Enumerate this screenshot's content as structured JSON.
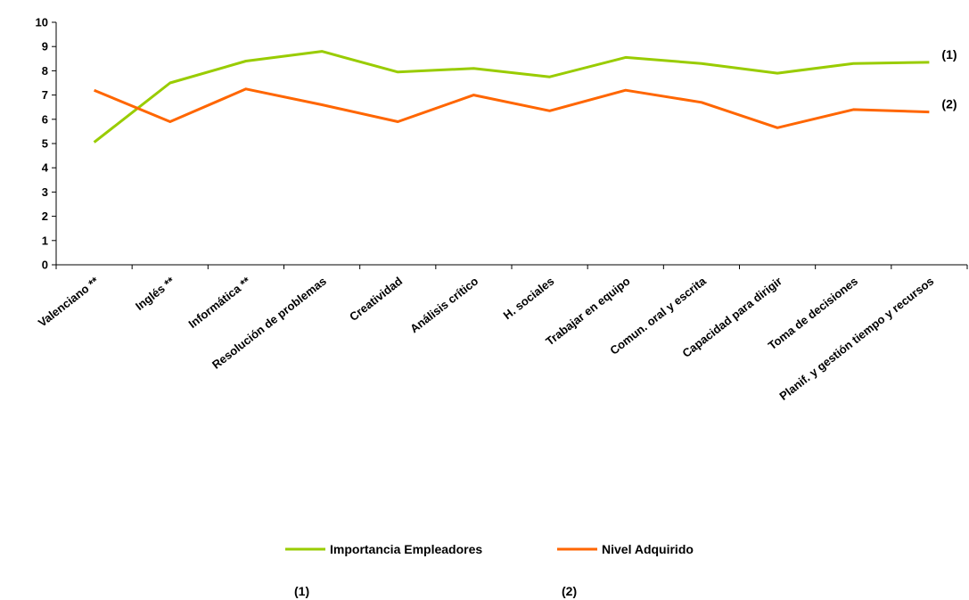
{
  "chart_data": {
    "type": "line",
    "categories": [
      "Valenciano **",
      "Inglés **",
      "Informática **",
      "Resolución de problemas",
      "Creatividad",
      "Análisis crítico",
      "H. sociales",
      "Trabajar en equipo",
      "Comun. oral y escrita",
      "Capacidad para dirigir",
      "Toma de decisiones",
      "Planif. y gestión tiempo y recursos"
    ],
    "series": [
      {
        "name": "Importancia Empleadores",
        "tag": "(1)",
        "color": "#99CC00",
        "values": [
          5.05,
          7.5,
          8.4,
          8.8,
          7.95,
          8.1,
          7.75,
          8.55,
          8.3,
          7.9,
          8.3,
          8.35
        ]
      },
      {
        "name": "Nivel Adquirido",
        "tag": "(2)",
        "color": "#FF6600",
        "values": [
          7.2,
          5.9,
          7.25,
          6.6,
          5.9,
          7.0,
          6.35,
          7.2,
          6.7,
          5.65,
          6.4,
          6.3
        ]
      }
    ],
    "ylim": [
      0,
      10
    ],
    "yticks": [
      "0",
      "1",
      "2",
      "3",
      "4",
      "5",
      "6",
      "7",
      "8",
      "9",
      "10"
    ],
    "grid": false,
    "legend_position": "bottom",
    "footnotes": [
      "(1)",
      "(2)"
    ]
  }
}
